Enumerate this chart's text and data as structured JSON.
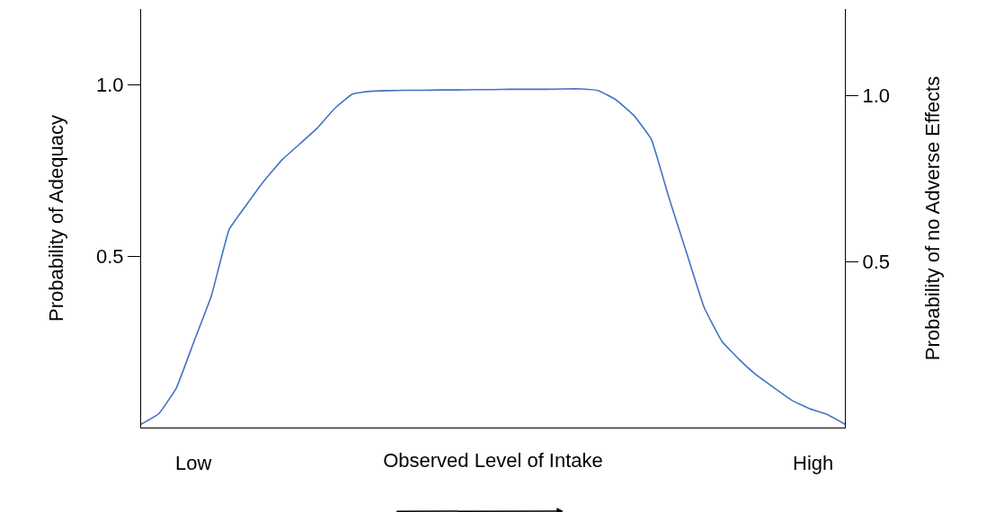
{
  "chart_data": {
    "type": "line",
    "xlabel": "Observed Level of Intake",
    "ylabel": "Probability of Adequacy",
    "y2label": "Probability of no Adverse Effects",
    "annotations": [
      "Low",
      "High"
    ],
    "categories": [
      null,
      null,
      null,
      null,
      null,
      null,
      null,
      null,
      null,
      null,
      null,
      null,
      null,
      null,
      null,
      null,
      null,
      null,
      null,
      null,
      null,
      null,
      null,
      null,
      null,
      null,
      null,
      null,
      null,
      null,
      null,
      null,
      null,
      null,
      null,
      null,
      null,
      null,
      null,
      null,
      null
    ],
    "ylim": [
      0,
      1.22
    ],
    "yticks": [
      {
        "value": 0.5,
        "label": "0.5"
      },
      {
        "value": 1.0,
        "label": "1.0"
      }
    ],
    "y2lim": [
      0,
      1.26
    ],
    "y2ticks": [
      {
        "value": 0.5,
        "label": "0.5"
      },
      {
        "value": 1.0,
        "label": "1.0"
      }
    ],
    "tick_labels": "y",
    "marker": "none",
    "line_style": "solid",
    "series": [
      {
        "color": "#4472c4",
        "values": [
          0.01,
          0.04,
          0.115,
          0.25,
          0.385,
          0.577,
          0.65,
          0.72,
          0.78,
          0.826,
          0.872,
          0.93,
          0.972,
          0.98,
          0.982,
          0.983,
          0.983,
          0.984,
          0.984,
          0.985,
          0.985,
          0.986,
          0.986,
          0.986,
          0.987,
          0.987,
          0.982,
          0.955,
          0.91,
          0.84,
          0.67,
          0.51,
          0.35,
          0.252,
          0.198,
          0.152,
          0.115,
          0.079,
          0.055,
          0.038,
          0.01
        ]
      }
    ]
  }
}
